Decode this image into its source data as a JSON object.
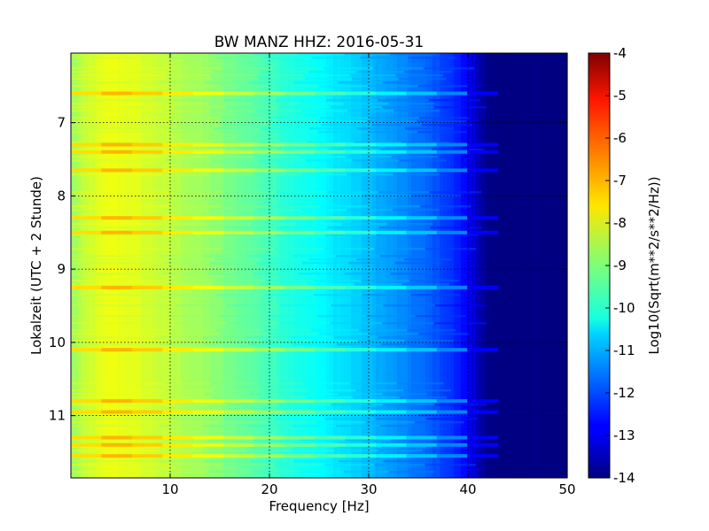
{
  "chart_data": {
    "type": "heatmap",
    "title": "BW MANZ HHZ: 2016-05-31",
    "xlabel": "Frequency [Hz]",
    "ylabel": "Lokalzeit (UTC + 2 Stunde)",
    "xlim": [
      0,
      50
    ],
    "ylim": [
      6.05,
      11.85
    ],
    "y_inverted": true,
    "grid": true,
    "x_ticks": [
      "10",
      "20",
      "30",
      "40",
      "50"
    ],
    "x_tick_values": [
      10,
      20,
      30,
      40,
      50
    ],
    "y_ticks": [
      "7",
      "8",
      "9",
      "10",
      "11"
    ],
    "y_tick_values": [
      7,
      8,
      9,
      10,
      11
    ],
    "colorbar": {
      "label": "Log10(Sqrt(m**2/s**2/Hz))",
      "colormap": "jet",
      "vmin": -14,
      "vmax": -4,
      "ticks": [
        "-4",
        "-5",
        "-6",
        "-7",
        "-8",
        "-9",
        "-10",
        "-11",
        "-12",
        "-13",
        "-14"
      ],
      "tick_values": [
        -4,
        -5,
        -6,
        -7,
        -8,
        -9,
        -10,
        -11,
        -12,
        -13,
        -14
      ]
    },
    "spectrum_profile": {
      "frequency_hz": [
        0,
        2,
        4,
        6,
        8,
        10,
        12,
        14,
        16,
        18,
        20,
        22,
        24,
        26,
        28,
        30,
        32,
        34,
        36,
        38,
        40,
        41,
        42,
        50
      ],
      "log10_amplitude": [
        -8.8,
        -8.2,
        -7.9,
        -8.0,
        -8.2,
        -8.4,
        -8.6,
        -8.8,
        -9.1,
        -9.3,
        -9.6,
        -9.9,
        -10.1,
        -10.4,
        -10.6,
        -10.9,
        -11.2,
        -11.5,
        -11.8,
        -12.2,
        -12.8,
        -13.4,
        -14,
        -14
      ]
    },
    "bright_bands_local_time": [
      6.6,
      7.3,
      7.4,
      7.65,
      8.3,
      8.5,
      9.25,
      10.1,
      10.8,
      10.95,
      11.3,
      11.4,
      11.55
    ]
  }
}
